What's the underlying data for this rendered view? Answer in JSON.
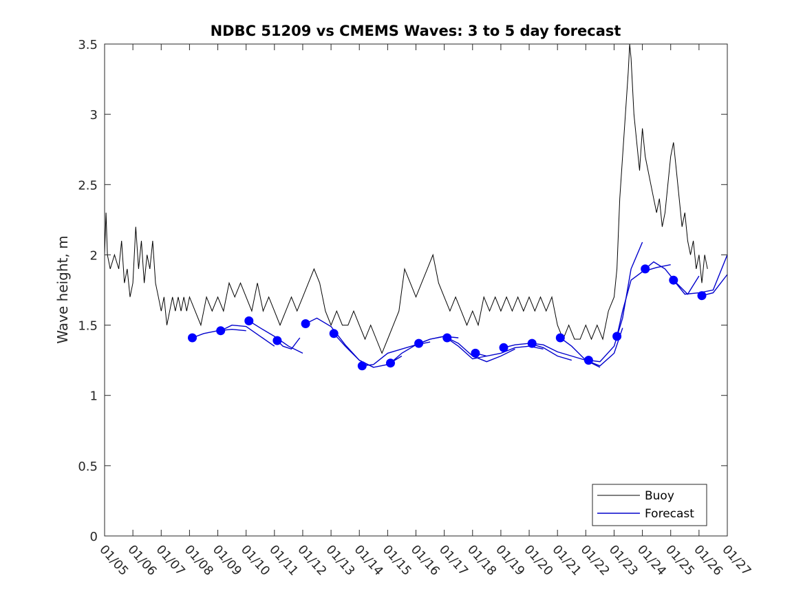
{
  "chart_data": {
    "type": "line",
    "title": "NDBC 51209 vs CMEMS Waves: 3 to 5 day forecast",
    "xlabel": "",
    "ylabel": "Wave height, m",
    "xlim": [
      5,
      27
    ],
    "ylim": [
      0,
      3.5
    ],
    "x_ticks": [
      5,
      6,
      7,
      8,
      9,
      10,
      11,
      12,
      13,
      14,
      15,
      16,
      17,
      18,
      19,
      20,
      21,
      22,
      23,
      24,
      25,
      26,
      27
    ],
    "x_tick_labels": [
      "01/05",
      "01/06",
      "01/07",
      "01/08",
      "01/09",
      "01/10",
      "01/11",
      "01/12",
      "01/13",
      "01/14",
      "01/15",
      "01/16",
      "01/17",
      "01/18",
      "01/19",
      "01/20",
      "01/21",
      "01/22",
      "01/23",
      "01/24",
      "01/25",
      "01/26",
      "01/27"
    ],
    "y_ticks": [
      0,
      0.5,
      1,
      1.5,
      2,
      2.5,
      3,
      3.5
    ],
    "y_tick_labels": [
      "0",
      "0.5",
      "1",
      "1.5",
      "2",
      "2.5",
      "3",
      "3.5"
    ],
    "legend": {
      "position": "bottom-right",
      "entries": [
        {
          "name": "Buoy",
          "color": "#000000"
        },
        {
          "name": "Forecast",
          "color": "#0000cc"
        }
      ]
    },
    "series": [
      {
        "name": "Buoy",
        "color": "#000000",
        "x": [
          5.0,
          5.05,
          5.1,
          5.2,
          5.35,
          5.5,
          5.6,
          5.7,
          5.8,
          5.9,
          6.0,
          6.1,
          6.2,
          6.3,
          6.4,
          6.5,
          6.6,
          6.7,
          6.8,
          6.9,
          7.0,
          7.1,
          7.2,
          7.3,
          7.4,
          7.5,
          7.6,
          7.7,
          7.8,
          7.9,
          8.0,
          8.2,
          8.4,
          8.6,
          8.8,
          9.0,
          9.2,
          9.4,
          9.6,
          9.8,
          10.0,
          10.2,
          10.4,
          10.6,
          10.8,
          11.0,
          11.2,
          11.4,
          11.6,
          11.8,
          12.0,
          12.2,
          12.4,
          12.6,
          12.8,
          13.0,
          13.2,
          13.4,
          13.6,
          13.8,
          14.0,
          14.2,
          14.4,
          14.6,
          14.8,
          15.0,
          15.2,
          15.4,
          15.6,
          15.8,
          16.0,
          16.2,
          16.4,
          16.6,
          16.8,
          17.0,
          17.2,
          17.4,
          17.6,
          17.8,
          18.0,
          18.2,
          18.4,
          18.6,
          18.8,
          19.0,
          19.2,
          19.4,
          19.6,
          19.8,
          20.0,
          20.2,
          20.4,
          20.6,
          20.8,
          21.0,
          21.2,
          21.4,
          21.6,
          21.8,
          22.0,
          22.2,
          22.4,
          22.6,
          22.8,
          23.0,
          23.1,
          23.2,
          23.3,
          23.4,
          23.5,
          23.55,
          23.6,
          23.7,
          23.8,
          23.9,
          24.0,
          24.1,
          24.2,
          24.3,
          24.4,
          24.5,
          24.6,
          24.7,
          24.8,
          24.9,
          25.0,
          25.1,
          25.2,
          25.3,
          25.4,
          25.5,
          25.6,
          25.7,
          25.8,
          25.9,
          26.0,
          26.1,
          26.2,
          26.3
        ],
        "y": [
          2.0,
          2.3,
          2.0,
          1.9,
          2.0,
          1.9,
          2.1,
          1.8,
          1.9,
          1.7,
          1.8,
          2.2,
          1.9,
          2.1,
          1.8,
          2.0,
          1.9,
          2.1,
          1.8,
          1.7,
          1.6,
          1.7,
          1.5,
          1.6,
          1.7,
          1.6,
          1.7,
          1.6,
          1.7,
          1.6,
          1.7,
          1.6,
          1.5,
          1.7,
          1.6,
          1.7,
          1.6,
          1.8,
          1.7,
          1.8,
          1.7,
          1.6,
          1.8,
          1.6,
          1.7,
          1.6,
          1.5,
          1.6,
          1.7,
          1.6,
          1.7,
          1.8,
          1.9,
          1.8,
          1.6,
          1.5,
          1.6,
          1.5,
          1.5,
          1.6,
          1.5,
          1.4,
          1.5,
          1.4,
          1.3,
          1.4,
          1.5,
          1.6,
          1.9,
          1.8,
          1.7,
          1.8,
          1.9,
          2.0,
          1.8,
          1.7,
          1.6,
          1.7,
          1.6,
          1.5,
          1.6,
          1.5,
          1.7,
          1.6,
          1.7,
          1.6,
          1.7,
          1.6,
          1.7,
          1.6,
          1.7,
          1.6,
          1.7,
          1.6,
          1.7,
          1.5,
          1.4,
          1.5,
          1.4,
          1.4,
          1.5,
          1.4,
          1.5,
          1.4,
          1.6,
          1.7,
          1.9,
          2.4,
          2.7,
          3.0,
          3.3,
          3.5,
          3.4,
          3.0,
          2.8,
          2.6,
          2.9,
          2.7,
          2.6,
          2.5,
          2.4,
          2.3,
          2.4,
          2.2,
          2.3,
          2.5,
          2.7,
          2.8,
          2.6,
          2.4,
          2.2,
          2.3,
          2.1,
          2.0,
          2.1,
          1.9,
          2.0,
          1.8,
          2.0,
          1.9
        ]
      },
      {
        "name": "Forecast",
        "color": "#0000cc",
        "segments": [
          {
            "x": [
              8.1,
              8.5,
              9.0,
              9.5,
              10.0
            ],
            "y": [
              1.41,
              1.44,
              1.46,
              1.47,
              1.46
            ]
          },
          {
            "x": [
              9.1,
              9.5,
              10.0,
              10.5,
              11.0
            ],
            "y": [
              1.46,
              1.5,
              1.49,
              1.42,
              1.35
            ]
          },
          {
            "x": [
              10.1,
              10.5,
              11.0,
              11.5,
              12.0
            ],
            "y": [
              1.53,
              1.48,
              1.42,
              1.35,
              1.3
            ]
          },
          {
            "x": [
              11.1,
              11.3,
              11.6,
              11.9
            ],
            "y": [
              1.39,
              1.35,
              1.33,
              1.41
            ]
          },
          {
            "x": [
              12.1,
              12.5,
              13.0,
              13.5,
              14.0,
              14.5
            ],
            "y": [
              1.51,
              1.55,
              1.49,
              1.36,
              1.25,
              1.2
            ]
          },
          {
            "x": [
              13.1,
              13.5,
              14.0,
              14.5,
              15.0,
              15.5
            ],
            "y": [
              1.44,
              1.35,
              1.25,
              1.2,
              1.22,
              1.28
            ]
          },
          {
            "x": [
              14.1,
              14.5,
              15.0,
              15.5,
              16.0,
              16.5
            ],
            "y": [
              1.21,
              1.22,
              1.3,
              1.33,
              1.36,
              1.38
            ]
          },
          {
            "x": [
              15.1,
              15.5,
              16.0,
              16.5,
              17.0,
              17.5
            ],
            "y": [
              1.23,
              1.3,
              1.36,
              1.4,
              1.42,
              1.41
            ]
          },
          {
            "x": [
              16.1,
              16.5,
              17.0,
              17.5,
              18.0,
              18.5
            ],
            "y": [
              1.37,
              1.4,
              1.42,
              1.35,
              1.26,
              1.28
            ]
          },
          {
            "x": [
              17.1,
              17.5,
              18.0,
              18.5,
              19.0,
              19.5
            ],
            "y": [
              1.41,
              1.37,
              1.28,
              1.24,
              1.28,
              1.33
            ]
          },
          {
            "x": [
              18.1,
              18.5,
              19.0,
              19.5,
              20.0,
              20.5
            ],
            "y": [
              1.3,
              1.28,
              1.3,
              1.34,
              1.35,
              1.33
            ]
          },
          {
            "x": [
              19.1,
              19.5,
              20.0,
              20.5,
              21.0,
              21.5
            ],
            "y": [
              1.34,
              1.36,
              1.37,
              1.34,
              1.28,
              1.25
            ]
          },
          {
            "x": [
              20.1,
              20.5,
              21.0,
              21.5,
              22.0,
              22.5
            ],
            "y": [
              1.37,
              1.36,
              1.31,
              1.28,
              1.25,
              1.2
            ]
          },
          {
            "x": [
              21.1,
              21.5,
              22.0,
              22.5,
              23.0,
              23.3
            ],
            "y": [
              1.41,
              1.35,
              1.25,
              1.21,
              1.3,
              1.48
            ]
          },
          {
            "x": [
              22.1,
              22.5,
              23.0,
              23.3,
              23.6,
              24.0
            ],
            "y": [
              1.25,
              1.24,
              1.35,
              1.55,
              1.9,
              2.09
            ]
          },
          {
            "x": [
              23.1,
              23.3,
              23.6,
              24.0,
              24.5,
              25.0
            ],
            "y": [
              1.42,
              1.6,
              1.82,
              1.88,
              1.91,
              1.93
            ]
          },
          {
            "x": [
              24.1,
              24.4,
              24.8,
              25.2,
              25.6,
              26.0
            ],
            "y": [
              1.9,
              1.95,
              1.9,
              1.8,
              1.72,
              1.85
            ]
          },
          {
            "x": [
              25.1,
              25.5,
              26.0,
              26.5,
              27.0
            ],
            "y": [
              1.82,
              1.72,
              1.73,
              1.75,
              2.0
            ]
          },
          {
            "x": [
              26.1,
              26.5,
              27.0
            ],
            "y": [
              1.71,
              1.73,
              1.86
            ]
          }
        ],
        "markers": {
          "x": [
            8.1,
            9.1,
            10.1,
            11.1,
            12.1,
            13.1,
            14.1,
            15.1,
            16.1,
            17.1,
            18.1,
            19.1,
            20.1,
            21.1,
            22.1,
            23.1,
            24.1,
            25.1,
            26.1
          ],
          "y": [
            1.41,
            1.46,
            1.53,
            1.39,
            1.51,
            1.44,
            1.21,
            1.23,
            1.37,
            1.41,
            1.3,
            1.34,
            1.37,
            1.41,
            1.25,
            1.42,
            1.9,
            1.82,
            1.71
          ]
        }
      }
    ]
  }
}
